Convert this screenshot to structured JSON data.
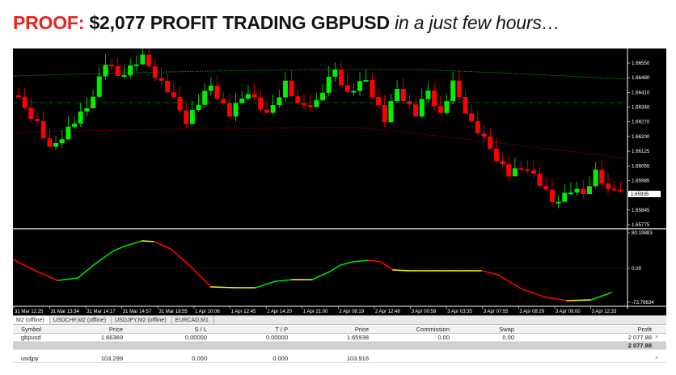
{
  "headline": {
    "proof": "PROOF:",
    "main": " $2,077 PROFIT TRADING GBPUSD ",
    "tail": "in a just few hours…"
  },
  "colors": {
    "bull": "#00ee00",
    "bear": "#ff0000",
    "upper_ma": "#00c800",
    "lower_ma": "#b40000",
    "osc_up": "#00e000",
    "osc_down": "#ff0000",
    "osc_flat": "#ffff00"
  },
  "price_axis": [
    "1.66550",
    "1.66480",
    "1.66410",
    "1.66340",
    "1.66270",
    "1.66200",
    "1.66125",
    "1.66055",
    "1.65985",
    "1.65915",
    "1.65845",
    "1.65775"
  ],
  "current_price": "1.65935",
  "osc_axis": [
    "80.19883",
    "0.00",
    "-73.76634"
  ],
  "time_axis": [
    "31 Mar 12:25",
    "31 Mar 13:34",
    "31 Mar 14:17",
    "31 Mar 14:57",
    "31 Mar 18:55",
    "1 Apr 10:06",
    "1 Apr 12:45",
    "1 Apr 14:20",
    "1 Apr 21:00",
    "2 Apr 08:19",
    "2 Apr 12:48",
    "3 Apr 00:58",
    "3 Apr 03:35",
    "3 Apr 07:55",
    "3 Apr 08:29",
    "3 Apr 09:00",
    "3 Apr 12:33"
  ],
  "tabs": [
    "M2 (offline)",
    "USDCHF,M2 (offline)",
    "USDJPY,M2 (offline)",
    "EURCAD,M1"
  ],
  "terminal": {
    "columns": [
      "Symbol",
      "Price",
      "S / L",
      "T / P",
      "Price",
      "Commission",
      "Swap",
      "Profit"
    ],
    "rows": [
      [
        "gbpusd",
        "1.66369",
        "0.00000",
        "0.00000",
        "1.65938",
        "0.00",
        "0.00",
        "2 077.88"
      ],
      [
        "usdjpy",
        "103.299",
        "0.000",
        "0.000",
        "103.916",
        "",
        "",
        ""
      ]
    ],
    "total": "2 077.88",
    "close_mark": "×"
  }
}
